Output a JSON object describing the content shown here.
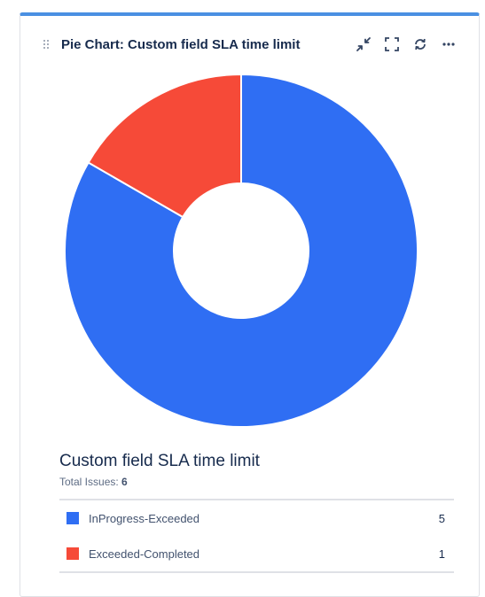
{
  "header": {
    "title": "Pie Chart: Custom field SLA time limit"
  },
  "colors": {
    "accent": "#4a90e2",
    "series_blue": "#2f6ef3",
    "series_red": "#f64a38"
  },
  "chart_data": {
    "type": "pie",
    "style": "donut",
    "title": "Custom field SLA time limit",
    "total_label": "Total Issues:",
    "total": "6",
    "slices": [
      {
        "label": "InProgress-Exceeded",
        "value": 5,
        "color": "#2f6ef3"
      },
      {
        "label": "Exceeded-Completed",
        "value": 1,
        "color": "#f64a38"
      }
    ],
    "legend_placement": "bottom"
  },
  "legend": {
    "rows": [
      {
        "label": "InProgress-Exceeded",
        "value": "5",
        "color": "#2f6ef3"
      },
      {
        "label": "Exceeded-Completed",
        "value": "1",
        "color": "#f64a38"
      }
    ]
  }
}
